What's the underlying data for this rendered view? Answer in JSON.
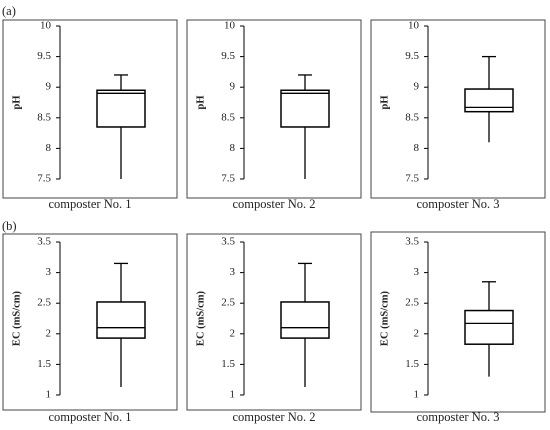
{
  "chart_data": [
    {
      "type": "box",
      "panel_label": "(a)",
      "ylabel": "pH",
      "xlabel": "composter No. 1",
      "ylim": [
        7.5,
        10
      ],
      "yticks": [
        7.5,
        8,
        8.5,
        9,
        9.5,
        10
      ],
      "min": 7.5,
      "q1": 8.35,
      "median": 8.9,
      "q3": 8.95,
      "max": 9.2
    },
    {
      "type": "box",
      "ylabel": "pH",
      "xlabel": "composter No. 2",
      "ylim": [
        7.5,
        10
      ],
      "yticks": [
        7.5,
        8,
        8.5,
        9,
        9.5,
        10
      ],
      "min": 7.5,
      "q1": 8.35,
      "median": 8.9,
      "q3": 8.95,
      "max": 9.2
    },
    {
      "type": "box",
      "ylabel": "pH",
      "xlabel": "composter No. 3",
      "ylim": [
        7.5,
        10
      ],
      "yticks": [
        7.5,
        8,
        8.5,
        9,
        9.5,
        10
      ],
      "min": 8.1,
      "q1": 8.6,
      "median": 8.67,
      "q3": 8.97,
      "max": 9.5
    },
    {
      "type": "box",
      "panel_label": "(b)",
      "ylabel": "EC (mS/cm)",
      "xlabel": "composter No. 1",
      "ylim": [
        1,
        3.5
      ],
      "yticks": [
        1,
        1.5,
        2,
        2.5,
        3,
        3.5
      ],
      "min": 1.13,
      "q1": 1.93,
      "median": 2.1,
      "q3": 2.52,
      "max": 3.15
    },
    {
      "type": "box",
      "ylabel": "EC (mS/cm)",
      "xlabel": "composter No. 2",
      "ylim": [
        1,
        3.5
      ],
      "yticks": [
        1,
        1.5,
        2,
        2.5,
        3,
        3.5
      ],
      "min": 1.13,
      "q1": 1.93,
      "median": 2.1,
      "q3": 2.52,
      "max": 3.15
    },
    {
      "type": "box",
      "ylabel": "EC (mS/cm)",
      "xlabel": "composter No. 3",
      "ylim": [
        1,
        3.5
      ],
      "yticks": [
        1,
        1.5,
        2,
        2.5,
        3,
        3.5
      ],
      "min": 1.3,
      "q1": 1.83,
      "median": 2.17,
      "q3": 2.38,
      "max": 2.85
    }
  ]
}
